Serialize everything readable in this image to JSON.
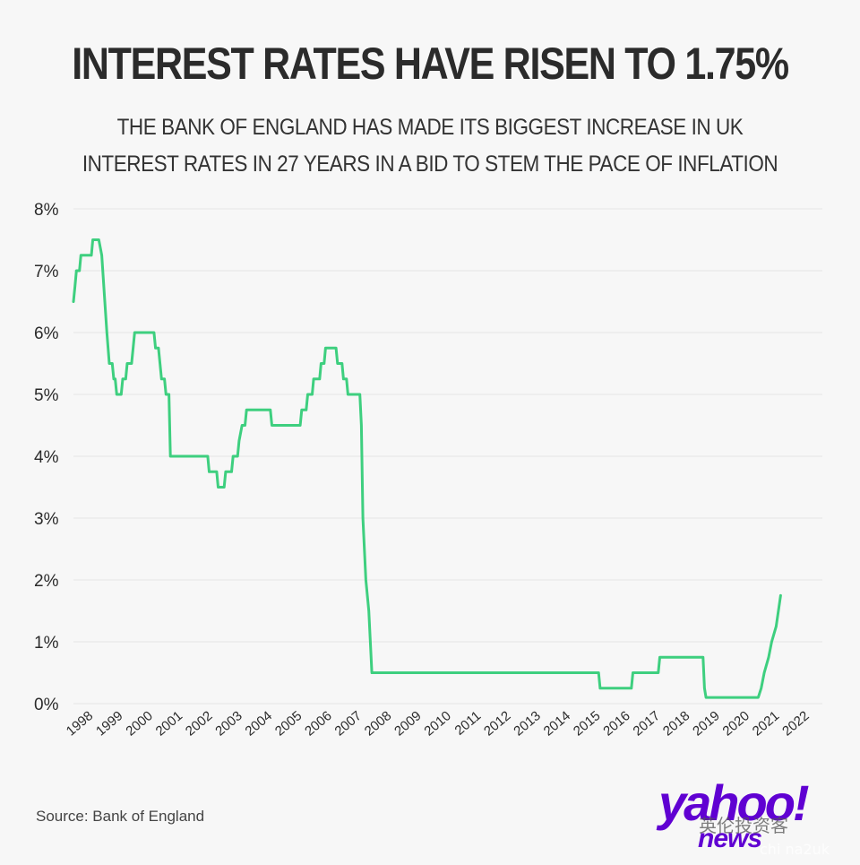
{
  "title": "INTEREST RATES HAVE RISEN TO 1.75%",
  "subtitle": "THE BANK OF ENGLAND HAS MADE ITS BIGGEST INCREASE IN UK INTEREST RATES IN 27 YEARS IN A BID TO STEM THE PACE OF INFLATION",
  "source": "Source: Bank of England",
  "logo": {
    "main": "yahoo!",
    "sub": "news"
  },
  "watermark": {
    "text": "英伦投资客",
    "handle": "chi na2uk"
  },
  "colors": {
    "line": "#3ecf7f",
    "grid": "#e4e4e4",
    "text": "#2b2b2b",
    "brand": "#6001d2"
  },
  "chart_data": {
    "type": "line",
    "title": "INTEREST RATES HAVE RISEN TO 1.75%",
    "xlabel": "",
    "ylabel": "",
    "ylim": [
      0,
      8
    ],
    "xlim": [
      1997.5,
      2022.6
    ],
    "grid": true,
    "y_ticks": [
      0,
      1,
      2,
      3,
      4,
      5,
      6,
      7,
      8
    ],
    "y_tick_labels": [
      "0%",
      "1%",
      "2%",
      "3%",
      "4%",
      "5%",
      "6%",
      "7%",
      "8%"
    ],
    "x_ticks": [
      1998,
      1999,
      2000,
      2001,
      2002,
      2003,
      2004,
      2005,
      2006,
      2007,
      2008,
      2009,
      2010,
      2011,
      2012,
      2013,
      2014,
      2015,
      2016,
      2017,
      2018,
      2019,
      2020,
      2021,
      2022
    ],
    "x_tick_labels": [
      "1998",
      "1999",
      "2000",
      "2001",
      "2002",
      "2003",
      "2004",
      "2005",
      "2006",
      "2007",
      "2008",
      "2009",
      "2010",
      "2011",
      "2012",
      "2013",
      "2014",
      "2015",
      "2016",
      "2017",
      "2018",
      "2019",
      "2020",
      "2021",
      "2022"
    ],
    "series": [
      {
        "points": [
          [
            1997.5,
            6.5
          ],
          [
            1997.55,
            6.75
          ],
          [
            1997.6,
            7.0
          ],
          [
            1997.7,
            7.0
          ],
          [
            1997.75,
            7.25
          ],
          [
            1998.0,
            7.25
          ],
          [
            1998.1,
            7.25
          ],
          [
            1998.15,
            7.5
          ],
          [
            1998.35,
            7.5
          ],
          [
            1998.45,
            7.25
          ],
          [
            1998.55,
            6.5
          ],
          [
            1998.62,
            6.0
          ],
          [
            1998.7,
            5.5
          ],
          [
            1998.8,
            5.5
          ],
          [
            1998.85,
            5.25
          ],
          [
            1998.9,
            5.25
          ],
          [
            1998.95,
            5.0
          ],
          [
            1999.1,
            5.0
          ],
          [
            1999.15,
            5.25
          ],
          [
            1999.25,
            5.25
          ],
          [
            1999.3,
            5.5
          ],
          [
            1999.45,
            5.5
          ],
          [
            1999.5,
            5.75
          ],
          [
            1999.55,
            6.0
          ],
          [
            1999.7,
            6.0
          ],
          [
            2000.0,
            6.0
          ],
          [
            2000.2,
            6.0
          ],
          [
            2000.25,
            5.75
          ],
          [
            2000.35,
            5.75
          ],
          [
            2000.4,
            5.5
          ],
          [
            2000.45,
            5.25
          ],
          [
            2000.55,
            5.25
          ],
          [
            2000.6,
            5.0
          ],
          [
            2000.7,
            5.0
          ],
          [
            2000.75,
            4.0
          ],
          [
            2001.0,
            4.0
          ],
          [
            2002.0,
            4.0
          ],
          [
            2002.05,
            3.75
          ],
          [
            2002.3,
            3.75
          ],
          [
            2002.35,
            3.5
          ],
          [
            2002.55,
            3.5
          ],
          [
            2002.6,
            3.75
          ],
          [
            2002.8,
            3.75
          ],
          [
            2002.85,
            4.0
          ],
          [
            2003.0,
            4.0
          ],
          [
            2003.05,
            4.25
          ],
          [
            2003.15,
            4.5
          ],
          [
            2003.25,
            4.5
          ],
          [
            2003.3,
            4.75
          ],
          [
            2004.0,
            4.75
          ],
          [
            2004.1,
            4.75
          ],
          [
            2004.15,
            4.5
          ],
          [
            2005.0,
            4.5
          ],
          [
            2005.1,
            4.5
          ],
          [
            2005.15,
            4.75
          ],
          [
            2005.3,
            4.75
          ],
          [
            2005.35,
            5.0
          ],
          [
            2005.5,
            5.0
          ],
          [
            2005.55,
            5.25
          ],
          [
            2005.75,
            5.25
          ],
          [
            2005.8,
            5.5
          ],
          [
            2005.9,
            5.5
          ],
          [
            2005.95,
            5.75
          ],
          [
            2006.3,
            5.75
          ],
          [
            2006.35,
            5.5
          ],
          [
            2006.5,
            5.5
          ],
          [
            2006.55,
            5.25
          ],
          [
            2006.65,
            5.25
          ],
          [
            2006.7,
            5.0
          ],
          [
            2007.1,
            5.0
          ],
          [
            2007.15,
            4.5
          ],
          [
            2007.2,
            3.0
          ],
          [
            2007.3,
            2.0
          ],
          [
            2007.4,
            1.5
          ],
          [
            2007.45,
            1.0
          ],
          [
            2007.5,
            0.5
          ],
          [
            2008.0,
            0.5
          ],
          [
            2015.0,
            0.5
          ],
          [
            2015.1,
            0.5
          ],
          [
            2015.15,
            0.25
          ],
          [
            2016.0,
            0.25
          ],
          [
            2016.2,
            0.25
          ],
          [
            2016.25,
            0.5
          ],
          [
            2017.0,
            0.5
          ],
          [
            2017.1,
            0.5
          ],
          [
            2017.15,
            0.75
          ],
          [
            2018.6,
            0.75
          ],
          [
            2018.65,
            0.25
          ],
          [
            2018.7,
            0.1
          ],
          [
            2020.0,
            0.1
          ],
          [
            2020.45,
            0.1
          ],
          [
            2020.55,
            0.25
          ],
          [
            2020.65,
            0.5
          ],
          [
            2020.8,
            0.75
          ],
          [
            2020.9,
            1.0
          ],
          [
            2021.05,
            1.25
          ],
          [
            2021.2,
            1.75
          ]
        ]
      }
    ]
  }
}
